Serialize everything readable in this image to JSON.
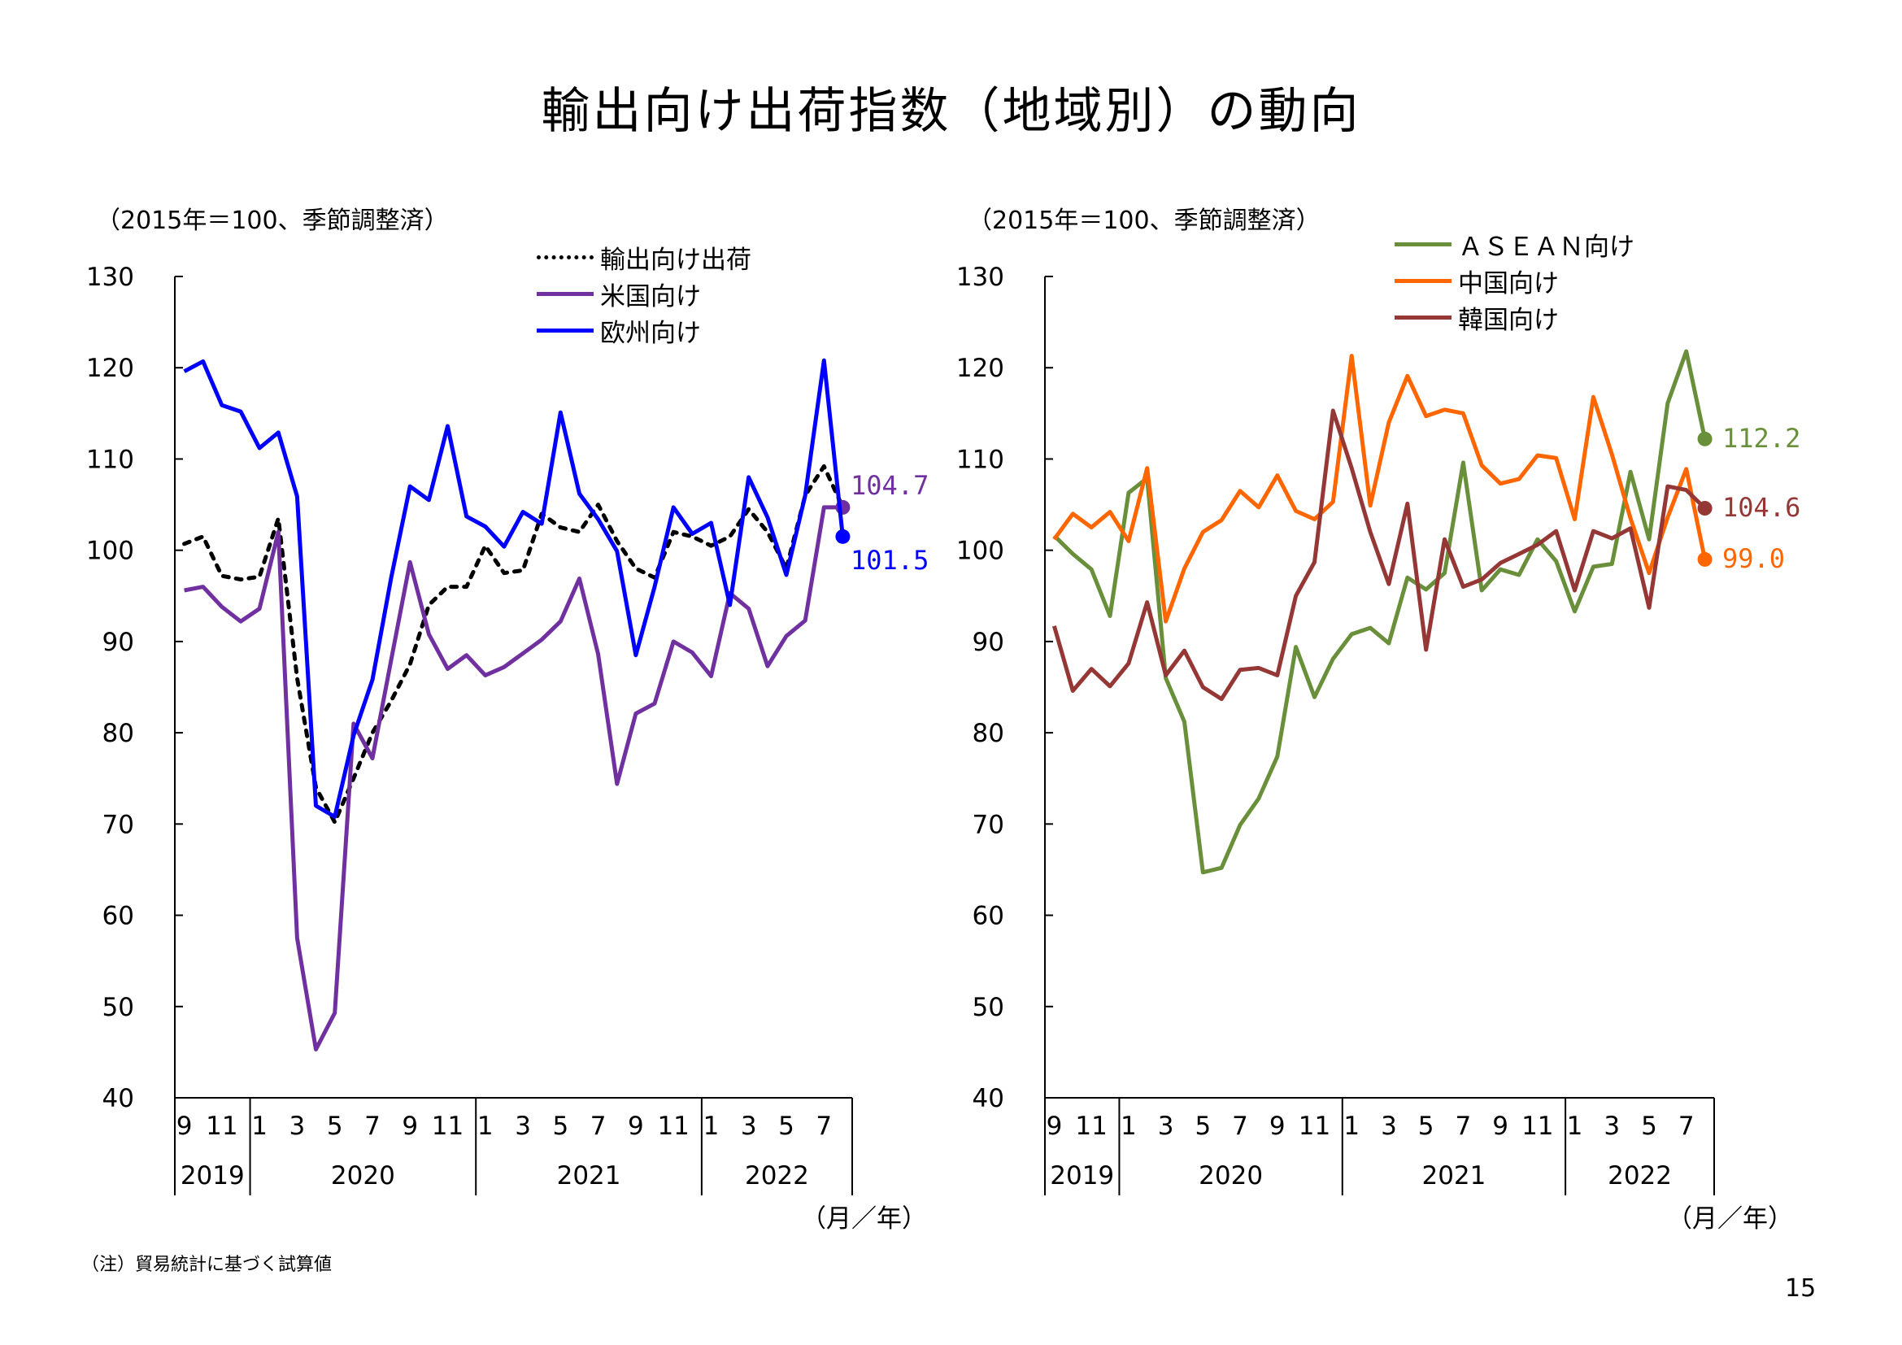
{
  "title": "輸出向け出荷指数（地域別）の動向",
  "note": "（注）貿易統計に基づく試算値",
  "page_number": "15",
  "charts": [
    {
      "unit_label": "（2015年＝100、季節調整済）",
      "axis_unit_label": "（月／年）",
      "legend": [
        "輸出向け出荷",
        "米国向け",
        "欧州向け"
      ]
    },
    {
      "unit_label": "（2015年＝100、季節調整済）",
      "axis_unit_label": "（月／年）",
      "legend": [
        "ＡＳＥＡＮ向け",
        "中国向け",
        "韓国向け"
      ]
    }
  ],
  "chart_data": [
    {
      "type": "line",
      "x_start": "2019-09",
      "x_end": "2022-08",
      "ylim": [
        40,
        130
      ],
      "yticks": [
        40,
        50,
        60,
        70,
        80,
        90,
        100,
        110,
        120,
        130
      ],
      "xtick_month_labels": [
        "9",
        "11",
        "1",
        "3",
        "5",
        "7",
        "9",
        "11",
        "1",
        "3",
        "5",
        "7",
        "9",
        "11",
        "1",
        "3",
        "5",
        "7"
      ],
      "year_labels": [
        "2019",
        "2020",
        "2021",
        "2022"
      ],
      "series": [
        {
          "name": "輸出向け出荷",
          "color": "#000000",
          "style": "dotted",
          "values": [
            100.7,
            101.5,
            97.2,
            96.8,
            97.1,
            103.5,
            86.0,
            74.0,
            70.2,
            75.0,
            80.0,
            83.5,
            87.5,
            94.0,
            96.0,
            96.0,
            100.5,
            97.5,
            97.8,
            104.0,
            102.5,
            102.0,
            105.0,
            101.0,
            98.0,
            97.0,
            102.0,
            101.5,
            100.5,
            101.5,
            104.5,
            102.0,
            98.0,
            106.0,
            109.2,
            104.7
          ]
        },
        {
          "name": "米国向け",
          "color": "#7030A0",
          "style": "solid",
          "values": [
            95.6,
            96.0,
            93.8,
            92.2,
            93.6,
            102.0,
            57.5,
            45.3,
            49.3,
            81.0,
            77.2,
            88.0,
            98.7,
            90.8,
            87.0,
            88.5,
            86.3,
            87.2,
            88.7,
            90.2,
            92.2,
            96.9,
            88.6,
            74.4,
            82.1,
            83.2,
            90.0,
            88.8,
            86.2,
            95.3,
            93.6,
            87.3,
            90.6,
            92.3,
            104.7,
            104.7
          ],
          "last_label": "104.7"
        },
        {
          "name": "欧州向け",
          "color": "#0000FF",
          "style": "solid",
          "values": [
            119.6,
            120.7,
            115.9,
            115.2,
            111.2,
            112.9,
            105.9,
            72.0,
            70.8,
            79.7,
            85.8,
            97.0,
            107.0,
            105.5,
            113.6,
            103.7,
            102.6,
            100.4,
            104.2,
            102.9,
            115.1,
            106.2,
            103.4,
            99.9,
            88.5,
            96.0,
            104.7,
            101.8,
            103.0,
            94.0,
            108.0,
            103.6,
            97.3,
            106.0,
            120.8,
            101.5
          ],
          "last_label": "101.5"
        }
      ]
    },
    {
      "type": "line",
      "x_start": "2019-09",
      "x_end": "2022-08",
      "ylim": [
        40,
        130
      ],
      "yticks": [
        40,
        50,
        60,
        70,
        80,
        90,
        100,
        110,
        120,
        130
      ],
      "xtick_month_labels": [
        "9",
        "11",
        "1",
        "3",
        "5",
        "7",
        "9",
        "11",
        "1",
        "3",
        "5",
        "7",
        "9",
        "11",
        "1",
        "3",
        "5",
        "7"
      ],
      "year_labels": [
        "2019",
        "2020",
        "2021",
        "2022"
      ],
      "series": [
        {
          "name": "ＡＳＥＡＮ向け",
          "color": "#6A8F3A",
          "style": "solid",
          "values": [
            101.6,
            99.6,
            97.9,
            92.8,
            106.3,
            107.9,
            86.0,
            81.2,
            64.7,
            65.2,
            69.9,
            72.8,
            77.4,
            89.4,
            83.9,
            88.1,
            90.8,
            91.5,
            89.8,
            97.0,
            95.7,
            97.5,
            109.6,
            95.6,
            97.9,
            97.3,
            101.2,
            98.8,
            93.3,
            98.2,
            98.5,
            108.6,
            101.2,
            116.1,
            121.8,
            112.2
          ],
          "last_label": "112.2"
        },
        {
          "name": "中国向け",
          "color": "#FF6600",
          "style": "solid",
          "values": [
            101.2,
            104.0,
            102.5,
            104.2,
            101.0,
            109.0,
            92.2,
            98.0,
            102.0,
            103.3,
            106.5,
            104.7,
            108.2,
            104.3,
            103.4,
            105.3,
            121.3,
            104.9,
            114.0,
            119.1,
            114.7,
            115.4,
            115.0,
            109.3,
            107.3,
            107.8,
            110.4,
            110.1,
            103.4,
            116.8,
            110.5,
            103.5,
            97.5,
            103.6,
            108.9,
            99.0
          ],
          "last_label": "99.0"
        },
        {
          "name": "韓国向け",
          "color": "#953735",
          "style": "solid",
          "values": [
            91.7,
            84.6,
            87.0,
            85.1,
            87.6,
            94.3,
            86.3,
            89.0,
            85.0,
            83.7,
            86.9,
            87.1,
            86.3,
            95.0,
            98.7,
            115.3,
            109.0,
            102.0,
            96.3,
            105.1,
            89.1,
            101.2,
            96.0,
            96.8,
            98.6,
            99.6,
            100.6,
            102.1,
            95.6,
            102.1,
            101.3,
            102.4,
            93.7,
            107.0,
            106.6,
            104.6
          ],
          "last_label": "104.6"
        }
      ]
    }
  ]
}
